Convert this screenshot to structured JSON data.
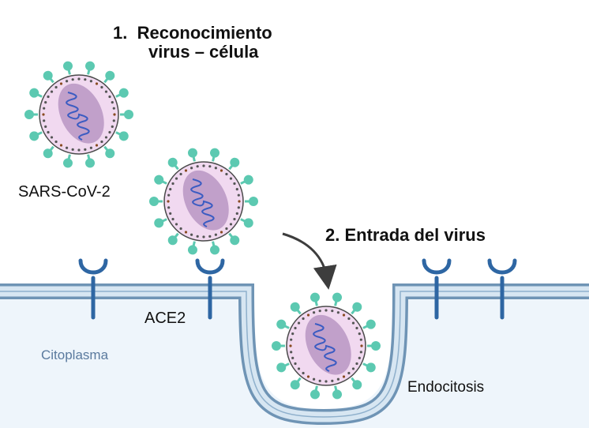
{
  "step1": {
    "number": "1.",
    "line1": "Reconocimiento",
    "line2": "virus – célula"
  },
  "step2": {
    "title": "2. Entrada del virus"
  },
  "labels": {
    "virus": "SARS-CoV-2",
    "receptor": "ACE2",
    "cytoplasm": "Citoplasma",
    "endocytosis": "Endocitosis"
  },
  "colors": {
    "spike": "#5cc9b1",
    "virus_envelope": "#f1d9f0",
    "virus_core": "#b08cbd",
    "rna": "#3b5cc2",
    "membrane": "#6f94b5",
    "membrane_inner": "#d7e6f2",
    "cytoplasm": "#eef5fb",
    "receptor": "#2e66a3",
    "arrow": "#3d3d3d"
  }
}
